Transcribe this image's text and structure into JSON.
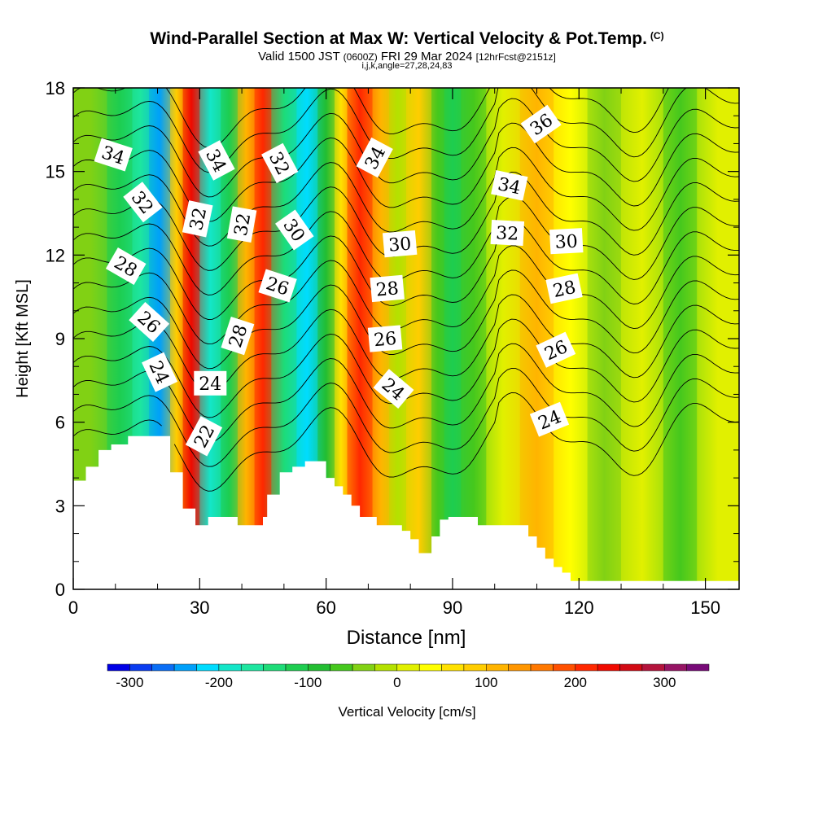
{
  "header": {
    "title": "Wind-Parallel Section at Max W: Vertical Velocity & Pot.Temp.",
    "copyright": "(C)",
    "valid_prefix": "Valid 1500 JST",
    "valid_utc": "(0600Z)",
    "valid_date": "FRI 29 Mar 2024",
    "forecast": "[12hrFcst@2151z]",
    "params": "i,j,k,angle=27,28,24,83"
  },
  "chart_data": {
    "type": "heatmap",
    "xlabel": "Distance [nm]",
    "ylabel": "Height [Kft MSL]",
    "xlim": [
      0,
      158
    ],
    "ylim": [
      0,
      18
    ],
    "x_ticks": [
      0,
      30,
      60,
      90,
      120,
      150
    ],
    "y_ticks": [
      0,
      3,
      6,
      9,
      12,
      15,
      18
    ],
    "fill_variable": "Vertical Velocity [cm/s]",
    "colorbar": {
      "label": "Vertical Velocity [cm/s]",
      "tick_labels": [
        "-300",
        "-200",
        "-100",
        "0",
        "100",
        "200",
        "300"
      ],
      "tick_values": [
        -300,
        -200,
        -100,
        0,
        100,
        200,
        300
      ],
      "range": [
        -325,
        350
      ],
      "step": 25,
      "colors": [
        "#0000e6",
        "#0a3cf0",
        "#0a6ef5",
        "#00a0fa",
        "#00dcff",
        "#14e6c8",
        "#1ee6a0",
        "#1edc78",
        "#1ecd50",
        "#23be32",
        "#46c81e",
        "#82d214",
        "#b4e100",
        "#e1f000",
        "#ffff00",
        "#ffe100",
        "#ffcd00",
        "#ffb400",
        "#ff9600",
        "#ff7800",
        "#ff5000",
        "#ff2800",
        "#f00a00",
        "#d20a14",
        "#b4143c",
        "#961464",
        "#780a78"
      ]
    },
    "w_field_bands": [
      {
        "x0": 0,
        "x1": 8,
        "w": -40
      },
      {
        "x0": 8,
        "x1": 14,
        "w": -110
      },
      {
        "x0": 14,
        "x1": 18,
        "w": -160
      },
      {
        "x0": 18,
        "x1": 23,
        "w": -240
      },
      {
        "x0": 23,
        "x1": 26,
        "w": 90
      },
      {
        "x0": 26,
        "x1": 30,
        "w": 230
      },
      {
        "x0": 30,
        "x1": 35,
        "w": -200
      },
      {
        "x0": 35,
        "x1": 39,
        "w": -120
      },
      {
        "x0": 39,
        "x1": 43,
        "w": 120
      },
      {
        "x0": 43,
        "x1": 47,
        "w": 220
      },
      {
        "x0": 47,
        "x1": 53,
        "w": -140
      },
      {
        "x0": 53,
        "x1": 58,
        "w": -210
      },
      {
        "x0": 58,
        "x1": 62,
        "w": -80
      },
      {
        "x0": 62,
        "x1": 65,
        "w": 60
      },
      {
        "x0": 65,
        "x1": 71,
        "w": 220
      },
      {
        "x0": 71,
        "x1": 75,
        "w": 110
      },
      {
        "x0": 75,
        "x1": 79,
        "w": -20
      },
      {
        "x0": 79,
        "x1": 85,
        "w": 90
      },
      {
        "x0": 85,
        "x1": 88,
        "w": -60
      },
      {
        "x0": 88,
        "x1": 92,
        "w": -120
      },
      {
        "x0": 92,
        "x1": 98,
        "w": -60
      },
      {
        "x0": 98,
        "x1": 106,
        "w": 10
      },
      {
        "x0": 106,
        "x1": 114,
        "w": 110
      },
      {
        "x0": 114,
        "x1": 122,
        "w": 40
      },
      {
        "x0": 122,
        "x1": 130,
        "w": -40
      },
      {
        "x0": 130,
        "x1": 140,
        "w": 10
      },
      {
        "x0": 140,
        "x1": 148,
        "w": -60
      },
      {
        "x0": 148,
        "x1": 158,
        "w": 10
      }
    ],
    "contour_variable": "Potential Temperature",
    "contour_levels": [
      22,
      23,
      24,
      25,
      26,
      27,
      28,
      29,
      30,
      31,
      32,
      33,
      34,
      35,
      36
    ],
    "contour_labels": [
      {
        "text": "34",
        "x": 9.5,
        "y": 15.6,
        "angle": 18
      },
      {
        "text": "32",
        "x": 16.5,
        "y": 13.9,
        "angle": 52
      },
      {
        "text": "28",
        "x": 12.5,
        "y": 11.6,
        "angle": 30
      },
      {
        "text": "26",
        "x": 18.0,
        "y": 9.6,
        "angle": 42
      },
      {
        "text": "24",
        "x": 20.5,
        "y": 7.8,
        "angle": 65
      },
      {
        "text": "34",
        "x": 34.0,
        "y": 15.4,
        "angle": 62
      },
      {
        "text": "32",
        "x": 29.5,
        "y": 13.3,
        "angle": -78
      },
      {
        "text": "32",
        "x": 40.0,
        "y": 13.1,
        "angle": -80
      },
      {
        "text": "28",
        "x": 39.0,
        "y": 9.1,
        "angle": -72
      },
      {
        "text": "24",
        "x": 32.5,
        "y": 7.4,
        "angle": 0
      },
      {
        "text": "22",
        "x": 31.0,
        "y": 5.5,
        "angle": -62
      },
      {
        "text": "32",
        "x": 49.0,
        "y": 15.3,
        "angle": 62
      },
      {
        "text": "30",
        "x": 52.5,
        "y": 12.9,
        "angle": 55
      },
      {
        "text": "26",
        "x": 48.5,
        "y": 10.9,
        "angle": 18
      },
      {
        "text": "34",
        "x": 71.5,
        "y": 15.5,
        "angle": -62
      },
      {
        "text": "30",
        "x": 77.5,
        "y": 12.4,
        "angle": -5
      },
      {
        "text": "28",
        "x": 74.5,
        "y": 10.8,
        "angle": -5
      },
      {
        "text": "26",
        "x": 74.0,
        "y": 9.0,
        "angle": -5
      },
      {
        "text": "24",
        "x": 76.0,
        "y": 7.2,
        "angle": 40
      },
      {
        "text": "36",
        "x": 111.0,
        "y": 16.7,
        "angle": -35
      },
      {
        "text": "34",
        "x": 103.5,
        "y": 14.5,
        "angle": 12
      },
      {
        "text": "32",
        "x": 103.0,
        "y": 12.8,
        "angle": 3
      },
      {
        "text": "30",
        "x": 117.0,
        "y": 12.5,
        "angle": -3
      },
      {
        "text": "28",
        "x": 116.5,
        "y": 10.8,
        "angle": -12
      },
      {
        "text": "26",
        "x": 114.5,
        "y": 8.6,
        "angle": -25
      },
      {
        "text": "24",
        "x": 113.0,
        "y": 6.1,
        "angle": -22
      }
    ],
    "terrain": [
      [
        0,
        3.9
      ],
      [
        3,
        4.4
      ],
      [
        6,
        5.0
      ],
      [
        9,
        5.2
      ],
      [
        13,
        5.5
      ],
      [
        19,
        5.5
      ],
      [
        23,
        4.2
      ],
      [
        26,
        2.9
      ],
      [
        29,
        2.3
      ],
      [
        32,
        2.6
      ],
      [
        39,
        2.3
      ],
      [
        45,
        2.6
      ],
      [
        46,
        3.4
      ],
      [
        49,
        4.2
      ],
      [
        52,
        4.4
      ],
      [
        55,
        4.6
      ],
      [
        58,
        4.6
      ],
      [
        60,
        4.0
      ],
      [
        62,
        3.7
      ],
      [
        64,
        3.4
      ],
      [
        66,
        3.0
      ],
      [
        68,
        2.6
      ],
      [
        72,
        2.3
      ],
      [
        78,
        2.1
      ],
      [
        80,
        1.8
      ],
      [
        82,
        1.3
      ],
      [
        85,
        1.9
      ],
      [
        87,
        2.5
      ],
      [
        89,
        2.6
      ],
      [
        93,
        2.6
      ],
      [
        96,
        2.3
      ],
      [
        106,
        2.3
      ],
      [
        108,
        1.9
      ],
      [
        110,
        1.5
      ],
      [
        112,
        1.1
      ],
      [
        114,
        0.8
      ],
      [
        116,
        0.6
      ],
      [
        118,
        0.3
      ],
      [
        158,
        0.3
      ]
    ]
  }
}
